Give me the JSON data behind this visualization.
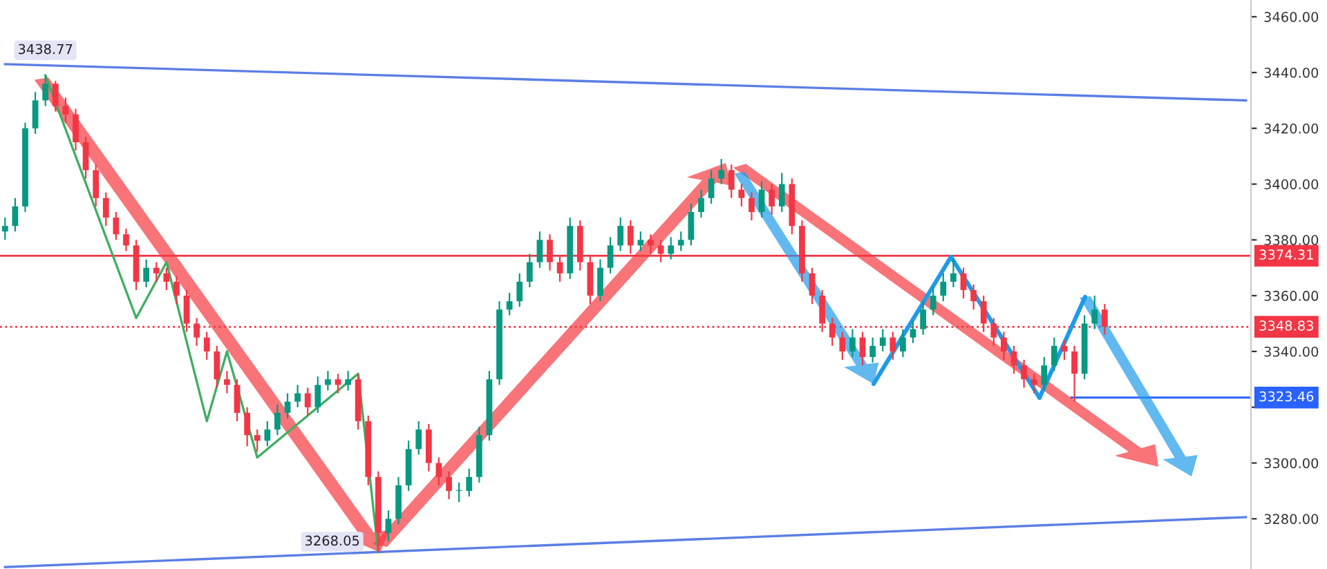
{
  "chart_data": {
    "type": "candlestick",
    "categories": [
      null,
      null,
      null,
      null,
      null,
      null,
      null,
      null,
      null,
      null,
      null,
      null,
      null,
      null,
      null,
      null,
      null,
      null,
      null,
      null,
      null,
      null,
      null,
      null,
      null,
      null,
      null,
      null,
      null,
      null,
      null,
      null,
      null,
      null,
      null,
      null,
      null,
      null,
      null,
      null,
      null,
      null,
      null,
      null,
      null,
      null,
      null,
      null,
      null,
      null,
      null,
      null,
      null,
      null,
      null,
      null,
      null,
      null,
      null,
      null,
      null,
      null,
      null,
      null,
      null,
      null,
      null,
      null,
      null,
      null,
      null,
      null,
      null,
      null,
      null,
      null,
      null,
      null,
      null,
      null,
      null,
      null,
      null,
      null,
      null,
      null,
      null,
      null,
      null,
      null,
      null,
      null,
      null,
      null,
      null,
      null,
      null,
      null,
      null,
      null,
      null,
      null,
      null,
      null,
      null,
      null,
      null,
      null,
      null,
      null,
      null,
      null,
      null,
      null,
      null,
      null,
      null,
      null,
      null,
      null,
      null,
      null,
      null,
      null
    ],
    "ohlc": [
      [
        3383,
        3388,
        3380,
        3385
      ],
      [
        3385,
        3395,
        3383,
        3392
      ],
      [
        3392,
        3422,
        3390,
        3420
      ],
      [
        3420,
        3433,
        3418,
        3430
      ],
      [
        3430,
        3438.77,
        3428,
        3436
      ],
      [
        3436,
        3437,
        3426,
        3428
      ],
      [
        3428,
        3431,
        3422,
        3425
      ],
      [
        3425,
        3427,
        3412,
        3415
      ],
      [
        3415,
        3417,
        3402,
        3405
      ],
      [
        3405,
        3407,
        3392,
        3395
      ],
      [
        3395,
        3397,
        3385,
        3388
      ],
      [
        3388,
        3390,
        3380,
        3382
      ],
      [
        3382,
        3384,
        3376,
        3378
      ],
      [
        3378,
        3380,
        3362,
        3365
      ],
      [
        3365,
        3373,
        3363,
        3370
      ],
      [
        3370,
        3372,
        3365,
        3368
      ],
      [
        3368,
        3370,
        3362,
        3365
      ],
      [
        3365,
        3367,
        3357,
        3360
      ],
      [
        3360,
        3362,
        3347,
        3350
      ],
      [
        3350,
        3352,
        3342,
        3345
      ],
      [
        3345,
        3347,
        3337,
        3340
      ],
      [
        3340,
        3342,
        3327,
        3330
      ],
      [
        3330,
        3333,
        3325,
        3328
      ],
      [
        3328,
        3330,
        3315,
        3318
      ],
      [
        3318,
        3320,
        3306,
        3310
      ],
      [
        3310,
        3312,
        3304,
        3308
      ],
      [
        3308,
        3315,
        3306,
        3312
      ],
      [
        3312,
        3321,
        3310,
        3318
      ],
      [
        3318,
        3325,
        3316,
        3322
      ],
      [
        3322,
        3328,
        3320,
        3325
      ],
      [
        3325,
        3327,
        3317,
        3320
      ],
      [
        3320,
        3331,
        3318,
        3328
      ],
      [
        3328,
        3333,
        3326,
        3330
      ],
      [
        3330,
        3332,
        3325,
        3328
      ],
      [
        3328,
        3333,
        3326,
        3330
      ],
      [
        3330,
        3332,
        3312,
        3315
      ],
      [
        3315,
        3317,
        3292,
        3295
      ],
      [
        3295,
        3297,
        3268.05,
        3275
      ],
      [
        3275,
        3283,
        3272,
        3280
      ],
      [
        3280,
        3295,
        3278,
        3292
      ],
      [
        3292,
        3308,
        3290,
        3305
      ],
      [
        3305,
        3315,
        3303,
        3312
      ],
      [
        3312,
        3314,
        3297,
        3300
      ],
      [
        3300,
        3302,
        3292,
        3295
      ],
      [
        3295,
        3297,
        3287,
        3290
      ],
      [
        3290,
        3293,
        3286,
        3290
      ],
      [
        3290,
        3298,
        3288,
        3295
      ],
      [
        3295,
        3313,
        3293,
        3310
      ],
      [
        3310,
        3333,
        3308,
        3330
      ],
      [
        3330,
        3358,
        3328,
        3355
      ],
      [
        3355,
        3361,
        3353,
        3358
      ],
      [
        3358,
        3368,
        3356,
        3365
      ],
      [
        3365,
        3375,
        3363,
        3372
      ],
      [
        3372,
        3383,
        3370,
        3380
      ],
      [
        3380,
        3382,
        3369,
        3372
      ],
      [
        3372,
        3374,
        3365,
        3368
      ],
      [
        3368,
        3388,
        3366,
        3385
      ],
      [
        3385,
        3387,
        3369,
        3372
      ],
      [
        3372,
        3374,
        3357,
        3360
      ],
      [
        3360,
        3373,
        3358,
        3370
      ],
      [
        3370,
        3381,
        3368,
        3378
      ],
      [
        3378,
        3388,
        3376,
        3385
      ],
      [
        3385,
        3387,
        3375,
        3378
      ],
      [
        3378,
        3383,
        3376,
        3380
      ],
      [
        3380,
        3382,
        3375,
        3378
      ],
      [
        3378,
        3380,
        3372,
        3375
      ],
      [
        3375,
        3381,
        3373,
        3378
      ],
      [
        3378,
        3383,
        3376,
        3380
      ],
      [
        3380,
        3393,
        3378,
        3390
      ],
      [
        3390,
        3398,
        3388,
        3395
      ],
      [
        3395,
        3405,
        3393,
        3402
      ],
      [
        3402,
        3409,
        3400,
        3405
      ],
      [
        3405,
        3407,
        3395,
        3398
      ],
      [
        3398,
        3400,
        3392,
        3395
      ],
      [
        3395,
        3397,
        3387,
        3390
      ],
      [
        3390,
        3401,
        3388,
        3398
      ],
      [
        3398,
        3400,
        3389,
        3392
      ],
      [
        3392,
        3404,
        3390,
        3400
      ],
      [
        3400,
        3402,
        3382,
        3385
      ],
      [
        3385,
        3387,
        3365,
        3368
      ],
      [
        3368,
        3370,
        3357,
        3360
      ],
      [
        3360,
        3362,
        3347,
        3350
      ],
      [
        3350,
        3352,
        3342,
        3345
      ],
      [
        3345,
        3347,
        3337,
        3340
      ],
      [
        3340,
        3348,
        3338,
        3345
      ],
      [
        3345,
        3347,
        3335,
        3338
      ],
      [
        3338,
        3345,
        3336,
        3342
      ],
      [
        3342,
        3348,
        3340,
        3345
      ],
      [
        3345,
        3347,
        3337,
        3340
      ],
      [
        3340,
        3348,
        3338,
        3345
      ],
      [
        3345,
        3351,
        3343,
        3348
      ],
      [
        3348,
        3358,
        3346,
        3355
      ],
      [
        3355,
        3363,
        3353,
        3360
      ],
      [
        3360,
        3368,
        3358,
        3365
      ],
      [
        3365,
        3373,
        3363,
        3368
      ],
      [
        3368,
        3370,
        3359,
        3362
      ],
      [
        3362,
        3364,
        3355,
        3358
      ],
      [
        3358,
        3360,
        3347,
        3350
      ],
      [
        3350,
        3352,
        3342,
        3345
      ],
      [
        3345,
        3347,
        3337,
        3340
      ],
      [
        3340,
        3342,
        3332,
        3335
      ],
      [
        3335,
        3337,
        3327,
        3330
      ],
      [
        3330,
        3332,
        3325,
        3328
      ],
      [
        3328,
        3338,
        3326,
        3335
      ],
      [
        3335,
        3345,
        3333,
        3342
      ],
      [
        3342,
        3344,
        3337,
        3340
      ],
      [
        3340,
        3342,
        3322,
        3332
      ],
      [
        3332,
        3353,
        3330,
        3350
      ],
      [
        3350,
        3360,
        3348,
        3355
      ],
      [
        3355,
        3357,
        3346,
        3348.83
      ],
      null,
      null,
      null,
      null,
      null,
      null,
      null,
      null,
      null,
      null,
      null,
      null,
      null,
      null
    ],
    "series": [
      {
        "type": "line",
        "color": "#5b7ee5",
        "values": [
          3443,
          null,
          null,
          null,
          null,
          null,
          null,
          null,
          null,
          null,
          null,
          null,
          null,
          null,
          null,
          null,
          null,
          null,
          null,
          null,
          null,
          null,
          null,
          null,
          null,
          null,
          null,
          null,
          null,
          null,
          null,
          null,
          null,
          null,
          null,
          null,
          null,
          null,
          null,
          null,
          null,
          null,
          null,
          null,
          null,
          null,
          null,
          null,
          null,
          null,
          null,
          null,
          null,
          null,
          null,
          null,
          null,
          null,
          null,
          null,
          null,
          null,
          null,
          null,
          null,
          null,
          null,
          null,
          null,
          null,
          null,
          null,
          null,
          null,
          null,
          null,
          null,
          null,
          null,
          null,
          null,
          null,
          null,
          null,
          null,
          null,
          null,
          null,
          null,
          null,
          null,
          null,
          null,
          null,
          null,
          null,
          null,
          null,
          null,
          null,
          null,
          null,
          null,
          null,
          null,
          null,
          null,
          null,
          null,
          null,
          null,
          null,
          null,
          null,
          null,
          null,
          null,
          null,
          null,
          null,
          null,
          null,
          null,
          3430
        ]
      },
      {
        "type": "line",
        "color": "#5b7ee5",
        "values": [
          3262.7,
          null,
          null,
          null,
          null,
          null,
          null,
          null,
          null,
          null,
          null,
          null,
          null,
          null,
          null,
          null,
          null,
          null,
          null,
          null,
          null,
          null,
          null,
          null,
          null,
          null,
          null,
          null,
          null,
          null,
          null,
          null,
          null,
          null,
          null,
          null,
          null,
          null,
          null,
          null,
          null,
          null,
          null,
          null,
          null,
          null,
          null,
          null,
          null,
          null,
          null,
          null,
          null,
          null,
          null,
          null,
          null,
          null,
          null,
          null,
          null,
          null,
          null,
          null,
          null,
          null,
          null,
          null,
          null,
          null,
          null,
          null,
          null,
          null,
          null,
          null,
          null,
          null,
          null,
          null,
          null,
          null,
          null,
          null,
          null,
          null,
          null,
          null,
          null,
          null,
          null,
          null,
          null,
          null,
          null,
          null,
          null,
          null,
          null,
          null,
          null,
          null,
          null,
          null,
          null,
          null,
          null,
          null,
          null,
          null,
          null,
          null,
          null,
          null,
          null,
          null,
          null,
          null,
          null,
          null,
          null,
          null,
          null,
          3280.6
        ]
      },
      {
        "type": "line",
        "color": "#3fae63",
        "values": [
          null,
          null,
          null,
          null,
          3439,
          null,
          null,
          null,
          null,
          null,
          null,
          null,
          null,
          3352,
          null,
          null,
          3372,
          null,
          null,
          null,
          3315,
          null,
          3340,
          null,
          null,
          3302,
          null,
          null,
          null,
          null,
          null,
          null,
          null,
          null,
          null,
          3332,
          null,
          3268,
          null,
          null,
          null,
          null,
          null,
          null,
          null,
          null,
          null,
          null,
          null,
          null,
          null,
          null,
          null,
          null,
          null,
          null,
          null,
          null,
          null,
          null,
          null,
          null,
          null,
          null,
          null,
          null,
          null,
          null,
          null,
          null,
          null,
          null,
          null,
          null,
          null,
          null,
          null,
          null,
          null,
          null,
          null,
          null,
          null,
          null,
          null,
          null,
          null,
          null,
          null,
          null,
          null,
          null,
          null,
          null,
          null,
          null,
          null,
          null,
          null,
          null,
          null,
          null,
          null,
          null,
          null,
          null,
          null,
          null,
          null,
          null,
          null,
          null,
          null,
          null,
          null,
          null,
          null,
          null,
          null,
          null,
          null,
          null,
          null,
          null
        ]
      }
    ],
    "ylim": [
      3262,
      3466
    ],
    "yticks": [
      {
        "value": 3280,
        "label": "3280.00"
      },
      {
        "value": 3300,
        "label": "3300.00"
      },
      {
        "value": 3320,
        "label": null
      },
      {
        "value": 3340,
        "label": "3340.00"
      },
      {
        "value": 3360,
        "label": "3360.00"
      },
      {
        "value": 3380,
        "label": "3380.00"
      },
      {
        "value": 3400,
        "label": "3400.00"
      },
      {
        "value": 3420,
        "label": "3420.00"
      },
      {
        "value": 3440,
        "label": "3440.00"
      },
      {
        "value": 3460,
        "label": "3460.00"
      }
    ],
    "tick_labels": "y",
    "ref_lines": [
      {
        "axis": "y",
        "value": 3374.31,
        "label": "3374.31",
        "color": "#f23645",
        "line_style": "solid"
      },
      {
        "axis": "y",
        "value": 3348.83,
        "label": "3348.83",
        "color": "#f23645",
        "line_style": "dotted"
      },
      {
        "axis": "y",
        "value": 3323.46,
        "label": "3323.46",
        "color": "#2962ff",
        "line_style": "solid"
      }
    ],
    "annotations": [
      {
        "text": "3438.77",
        "y": 3438.77
      },
      {
        "text": "3268.05",
        "y": 3268.05
      }
    ],
    "grid": false
  }
}
